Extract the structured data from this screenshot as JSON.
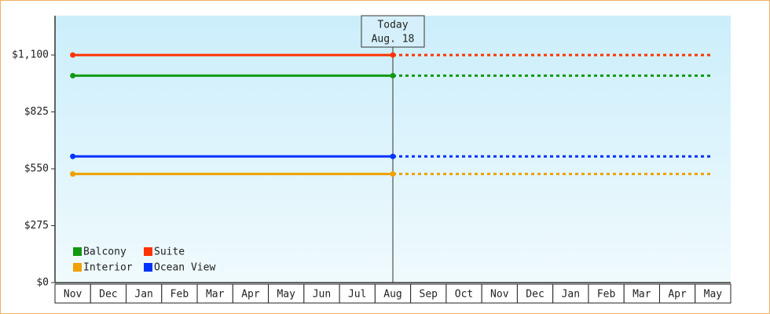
{
  "chart_data": {
    "type": "line",
    "categories": [
      "Nov",
      "Dec",
      "Jan",
      "Feb",
      "Mar",
      "Apr",
      "May",
      "Jun",
      "Jul",
      "Aug",
      "Sep",
      "Oct",
      "Nov",
      "Dec",
      "Jan",
      "Feb",
      "Mar",
      "Apr",
      "May"
    ],
    "series": [
      {
        "name": "Balcony",
        "color": "#119911",
        "values": [
          1000,
          1000,
          1000,
          1000,
          1000,
          1000,
          1000,
          1000,
          1000,
          1000,
          1000,
          1000,
          1000,
          1000,
          1000,
          1000,
          1000,
          1000,
          1000
        ]
      },
      {
        "name": "Suite",
        "color": "#ff3300",
        "values": [
          1100,
          1100,
          1100,
          1100,
          1100,
          1100,
          1100,
          1100,
          1100,
          1100,
          1100,
          1100,
          1100,
          1100,
          1100,
          1100,
          1100,
          1100,
          1100
        ]
      },
      {
        "name": "Interior",
        "color": "#f0a000",
        "values": [
          525,
          525,
          525,
          525,
          525,
          525,
          525,
          525,
          525,
          525,
          525,
          525,
          525,
          525,
          525,
          525,
          525,
          525,
          525
        ]
      },
      {
        "name": "Ocean View",
        "color": "#0033ff",
        "values": [
          610,
          610,
          610,
          610,
          610,
          610,
          610,
          610,
          610,
          610,
          610,
          610,
          610,
          610,
          610,
          610,
          610,
          610,
          610
        ]
      }
    ],
    "ylim": [
      0,
      1290
    ],
    "yticks": [
      {
        "value": 0,
        "label": "$0"
      },
      {
        "value": 275,
        "label": "$275"
      },
      {
        "value": 550,
        "label": "$550"
      },
      {
        "value": 825,
        "label": "$825"
      },
      {
        "value": 1100,
        "label": "$1,100"
      }
    ],
    "annotation": {
      "lines": [
        "Today",
        "Aug. 18"
      ],
      "category": "Aug"
    }
  }
}
